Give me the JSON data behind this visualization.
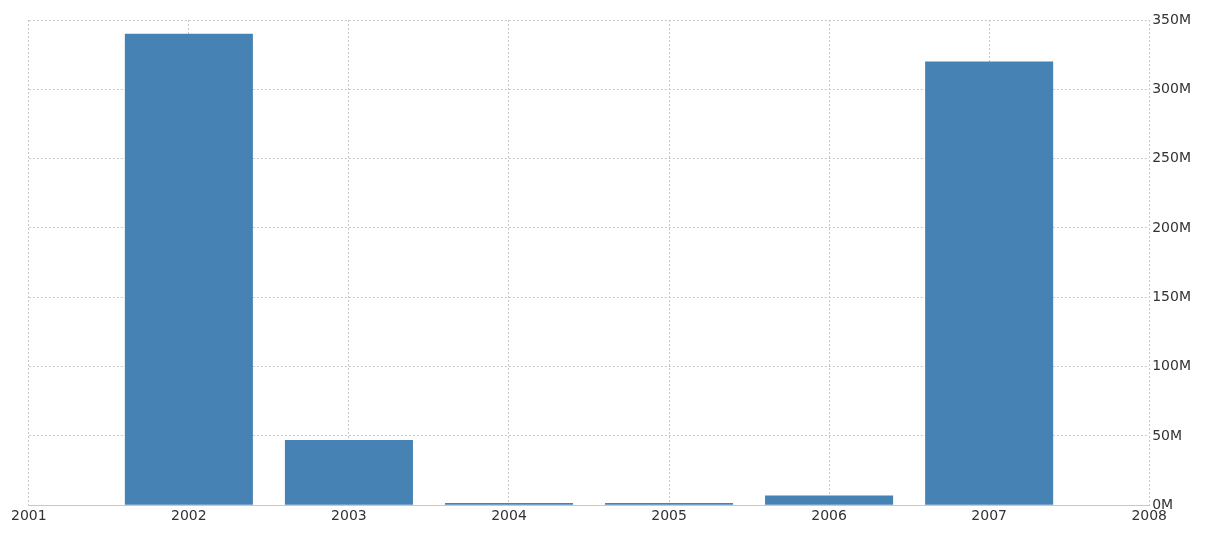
{
  "chart_data": {
    "type": "bar",
    "x": [
      2002,
      2003,
      2004,
      2005,
      2006,
      2007
    ],
    "values": [
      340,
      47,
      1.5,
      1.5,
      7,
      320
    ],
    "color": "#4682b4",
    "xlim": [
      2001,
      2008
    ],
    "xticks": [
      2001,
      2002,
      2003,
      2004,
      2005,
      2006,
      2007,
      2008
    ],
    "ylim": [
      0,
      350
    ],
    "yticks": [
      {
        "value": 0,
        "label": "0M"
      },
      {
        "value": 50,
        "label": "50M"
      },
      {
        "value": 100,
        "label": "100M"
      },
      {
        "value": 150,
        "label": "150M"
      },
      {
        "value": 200,
        "label": "200M"
      },
      {
        "value": 250,
        "label": "250M"
      },
      {
        "value": 300,
        "label": "300M"
      },
      {
        "value": 350,
        "label": "350M"
      }
    ],
    "grid": true,
    "legend": false
  }
}
